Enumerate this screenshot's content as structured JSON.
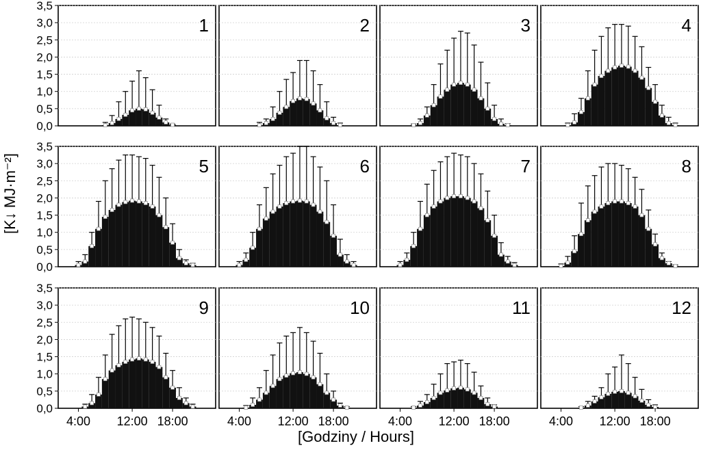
{
  "chart_data": {
    "type": "bar",
    "ylabel": "[K↓ MJ·m⁻²]",
    "xlabel": "[Godziny / Hours]",
    "ylim": [
      0,
      3.5
    ],
    "yticks": [
      "0,0",
      "0,5",
      "1,0",
      "1,5",
      "2,0",
      "2,5",
      "3,0",
      "3,5"
    ],
    "xticks": [
      "4:00",
      "12:00",
      "18:00"
    ],
    "hours": [
      1,
      2,
      3,
      4,
      5,
      6,
      7,
      8,
      9,
      10,
      11,
      12,
      13,
      14,
      15,
      16,
      17,
      18,
      19,
      20,
      21,
      22,
      23,
      24
    ],
    "panels": [
      {
        "label": "1",
        "mean": [
          0,
          0,
          0,
          0,
          0,
          0,
          0,
          0.02,
          0.08,
          0.2,
          0.32,
          0.45,
          0.5,
          0.48,
          0.38,
          0.24,
          0.1,
          0.03,
          0,
          0,
          0,
          0,
          0,
          0
        ],
        "max": [
          0,
          0,
          0,
          0,
          0,
          0,
          0,
          0.1,
          0.3,
          0.7,
          1.0,
          1.3,
          1.6,
          1.4,
          1.05,
          0.6,
          0.2,
          0.05,
          0,
          0,
          0,
          0,
          0,
          0
        ]
      },
      {
        "label": "2",
        "mean": [
          0,
          0,
          0,
          0,
          0,
          0,
          0.02,
          0.08,
          0.2,
          0.38,
          0.55,
          0.72,
          0.8,
          0.78,
          0.65,
          0.45,
          0.22,
          0.08,
          0.02,
          0,
          0,
          0,
          0,
          0
        ],
        "max": [
          0,
          0,
          0,
          0,
          0,
          0,
          0.1,
          0.2,
          0.55,
          1.0,
          1.35,
          1.55,
          1.9,
          1.9,
          1.6,
          1.2,
          0.7,
          0.25,
          0.08,
          0,
          0,
          0,
          0,
          0
        ]
      },
      {
        "label": "3",
        "mean": [
          0,
          0,
          0,
          0,
          0,
          0.02,
          0.08,
          0.3,
          0.6,
          0.85,
          1.05,
          1.2,
          1.25,
          1.2,
          1.05,
          0.8,
          0.5,
          0.2,
          0.06,
          0.02,
          0,
          0,
          0,
          0
        ],
        "max": [
          0,
          0,
          0,
          0,
          0,
          0.05,
          0.2,
          0.55,
          1.2,
          1.8,
          2.2,
          2.55,
          2.75,
          2.7,
          2.35,
          1.85,
          1.25,
          0.6,
          0.2,
          0.06,
          0,
          0,
          0,
          0
        ]
      },
      {
        "label": "4",
        "mean": [
          0,
          0,
          0,
          0,
          0.02,
          0.1,
          0.4,
          0.8,
          1.2,
          1.45,
          1.6,
          1.7,
          1.75,
          1.72,
          1.6,
          1.4,
          1.1,
          0.7,
          0.3,
          0.08,
          0.02,
          0,
          0,
          0
        ],
        "max": [
          0,
          0,
          0,
          0,
          0.08,
          0.35,
          0.8,
          1.6,
          2.2,
          2.6,
          2.85,
          2.95,
          2.95,
          2.9,
          2.6,
          2.3,
          1.7,
          1.2,
          0.6,
          0.25,
          0.08,
          0,
          0,
          0
        ]
      },
      {
        "label": "5",
        "mean": [
          0,
          0,
          0,
          0.05,
          0.15,
          0.6,
          1.1,
          1.45,
          1.65,
          1.8,
          1.88,
          1.92,
          1.9,
          1.85,
          1.75,
          1.5,
          1.15,
          0.7,
          0.25,
          0.1,
          0.05,
          0,
          0,
          0
        ],
        "max": [
          0,
          0,
          0,
          0.15,
          0.35,
          1.0,
          1.9,
          2.5,
          2.85,
          3.1,
          3.25,
          3.25,
          3.2,
          3.15,
          2.95,
          2.6,
          2.0,
          1.25,
          0.5,
          0.2,
          0.1,
          0,
          0,
          0
        ]
      },
      {
        "label": "6",
        "mean": [
          0,
          0,
          0,
          0.05,
          0.2,
          0.55,
          1.1,
          1.4,
          1.6,
          1.75,
          1.85,
          1.9,
          1.92,
          1.9,
          1.8,
          1.6,
          1.3,
          0.9,
          0.35,
          0.15,
          0.05,
          0,
          0,
          0
        ],
        "max": [
          0,
          0,
          0,
          0.15,
          0.4,
          1.0,
          1.8,
          2.3,
          2.7,
          2.95,
          3.2,
          3.3,
          3.5,
          3.5,
          3.2,
          2.9,
          2.5,
          1.8,
          0.8,
          0.35,
          0.15,
          0,
          0,
          0
        ]
      },
      {
        "label": "7",
        "mean": [
          0,
          0,
          0,
          0.05,
          0.2,
          0.6,
          1.1,
          1.5,
          1.75,
          1.9,
          2.0,
          2.05,
          2.05,
          2.0,
          1.9,
          1.7,
          1.35,
          0.9,
          0.35,
          0.15,
          0.05,
          0,
          0,
          0
        ],
        "max": [
          0,
          0,
          0,
          0.15,
          0.4,
          1.0,
          1.9,
          2.4,
          2.8,
          3.05,
          3.2,
          3.3,
          3.25,
          3.2,
          3.0,
          2.7,
          2.2,
          1.5,
          0.7,
          0.3,
          0.12,
          0,
          0,
          0
        ]
      },
      {
        "label": "8",
        "mean": [
          0,
          0,
          0,
          0.02,
          0.12,
          0.45,
          0.95,
          1.35,
          1.6,
          1.75,
          1.85,
          1.9,
          1.9,
          1.85,
          1.75,
          1.5,
          1.1,
          0.65,
          0.25,
          0.1,
          0.02,
          0,
          0,
          0
        ],
        "max": [
          0,
          0,
          0,
          0.08,
          0.3,
          0.9,
          1.85,
          2.35,
          2.65,
          2.9,
          3.0,
          3.0,
          2.95,
          2.85,
          2.6,
          2.25,
          1.65,
          0.95,
          0.4,
          0.15,
          0.05,
          0,
          0,
          0
        ]
      },
      {
        "label": "9",
        "mean": [
          0,
          0,
          0,
          0,
          0.05,
          0.15,
          0.4,
          0.85,
          1.1,
          1.25,
          1.35,
          1.42,
          1.45,
          1.42,
          1.35,
          1.2,
          0.9,
          0.6,
          0.3,
          0.15,
          0.05,
          0,
          0,
          0
        ],
        "max": [
          0,
          0,
          0,
          0,
          0.12,
          0.4,
          0.9,
          1.55,
          2.15,
          2.4,
          2.6,
          2.65,
          2.6,
          2.5,
          2.35,
          2.1,
          1.6,
          1.1,
          0.6,
          0.3,
          0.12,
          0,
          0,
          0
        ]
      },
      {
        "label": "10",
        "mean": [
          0,
          0,
          0,
          0,
          0.02,
          0.1,
          0.25,
          0.45,
          0.65,
          0.85,
          0.95,
          1.02,
          1.05,
          1.0,
          0.9,
          0.7,
          0.45,
          0.25,
          0.08,
          0.02,
          0,
          0,
          0,
          0
        ],
        "max": [
          0,
          0,
          0,
          0,
          0.08,
          0.3,
          0.6,
          1.1,
          1.55,
          1.9,
          2.1,
          2.2,
          2.35,
          2.2,
          1.95,
          1.6,
          1.0,
          0.5,
          0.15,
          0.05,
          0,
          0,
          0,
          0
        ]
      },
      {
        "label": "11",
        "mean": [
          0,
          0,
          0,
          0,
          0,
          0.02,
          0.08,
          0.18,
          0.3,
          0.45,
          0.52,
          0.58,
          0.6,
          0.55,
          0.45,
          0.3,
          0.12,
          0.05,
          0,
          0,
          0,
          0,
          0,
          0
        ],
        "max": [
          0,
          0,
          0,
          0,
          0,
          0.05,
          0.2,
          0.4,
          0.7,
          1.0,
          1.3,
          1.35,
          1.4,
          1.3,
          1.05,
          0.65,
          0.3,
          0.1,
          0,
          0,
          0,
          0,
          0,
          0
        ]
      },
      {
        "label": "12",
        "mean": [
          0,
          0,
          0,
          0,
          0,
          0,
          0.02,
          0.08,
          0.2,
          0.32,
          0.42,
          0.48,
          0.5,
          0.45,
          0.35,
          0.22,
          0.1,
          0.04,
          0,
          0,
          0,
          0,
          0,
          0
        ],
        "max": [
          0,
          0,
          0,
          0,
          0,
          0,
          0.05,
          0.2,
          0.35,
          0.6,
          1.0,
          1.2,
          1.55,
          1.3,
          0.9,
          0.55,
          0.25,
          0.1,
          0,
          0,
          0,
          0,
          0,
          0
        ]
      }
    ]
  }
}
